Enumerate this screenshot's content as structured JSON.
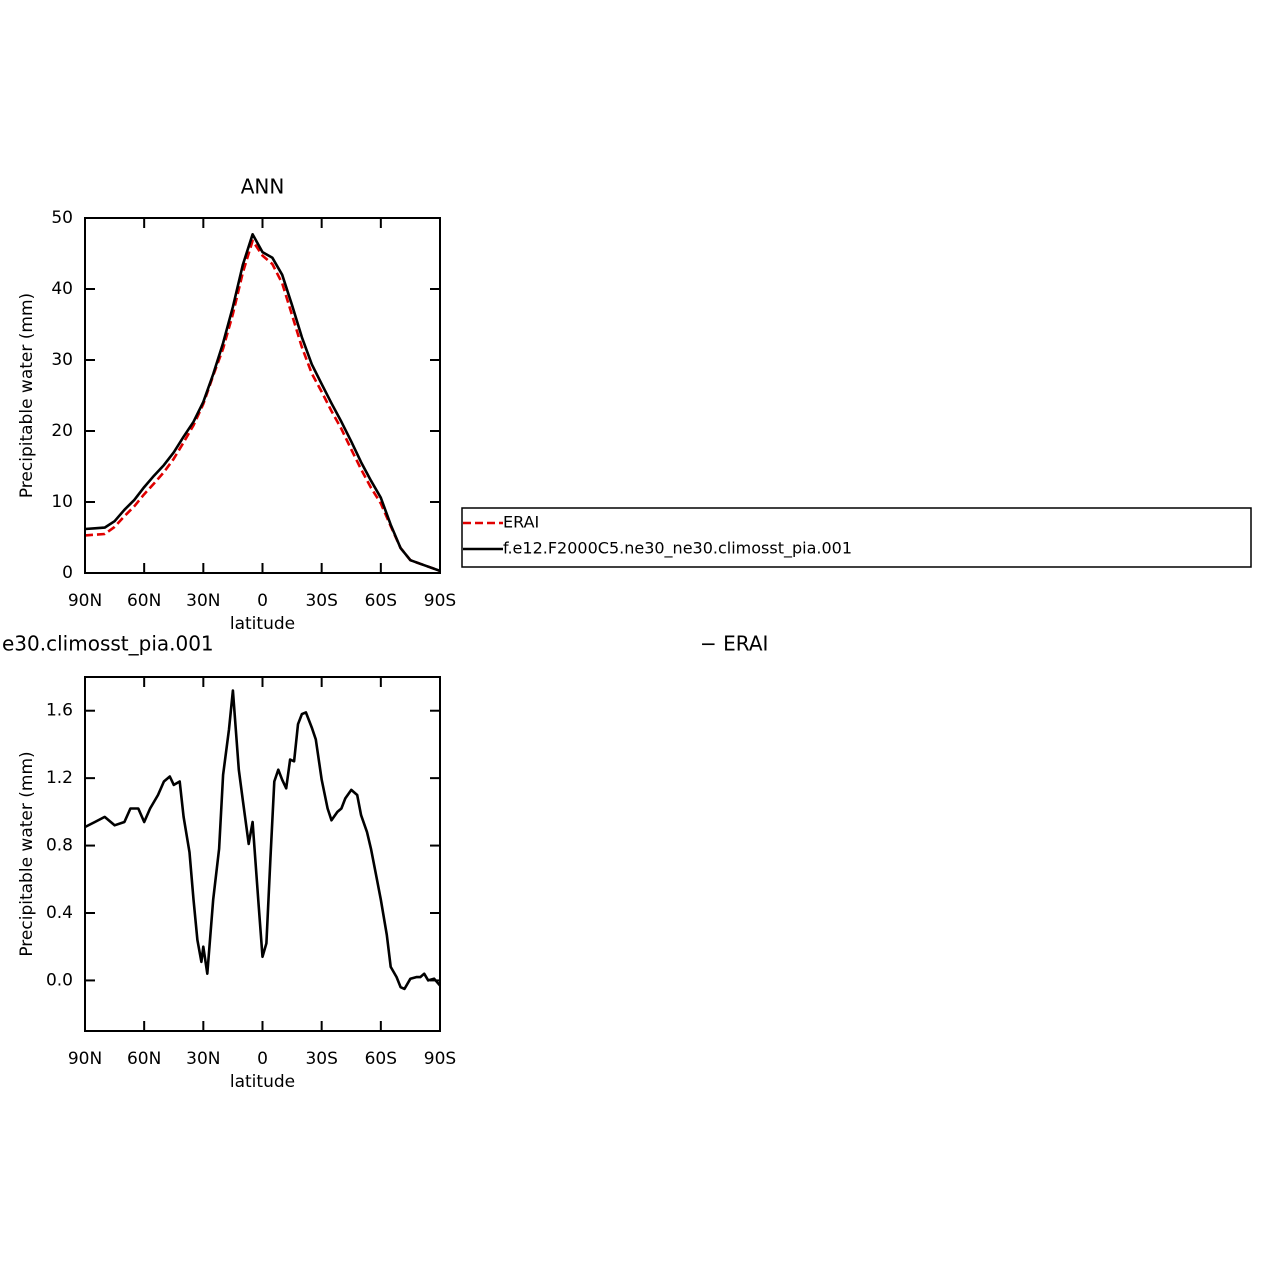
{
  "chart_data": [
    {
      "type": "line",
      "title": "ANN",
      "xlabel": "latitude",
      "ylabel": "Precipitable water (mm)",
      "x": [
        90,
        85,
        80,
        75,
        70,
        65,
        60,
        55,
        50,
        45,
        40,
        35,
        30,
        25,
        20,
        15,
        10,
        5,
        0,
        -5,
        -10,
        -15,
        -20,
        -25,
        -30,
        -35,
        -40,
        -45,
        -50,
        -55,
        -60,
        -65,
        -70,
        -75,
        -80,
        -85,
        -90
      ],
      "series": [
        {
          "name": "ERAI",
          "color": "#e00000",
          "dashed": true,
          "values": [
            5.3,
            5.4,
            5.5,
            6.5,
            8.0,
            9.4,
            11.1,
            12.6,
            14.2,
            16.1,
            18.4,
            20.8,
            23.8,
            27.8,
            31.6,
            36.5,
            42.3,
            46.8,
            44.7,
            43.5,
            40.8,
            36.3,
            31.8,
            28.1,
            25.5,
            22.8,
            20.3,
            17.4,
            14.6,
            12.0,
            9.8,
            6.6,
            3.5,
            1.8,
            1.3,
            0.8,
            0.3
          ]
        },
        {
          "name": "f.e12.F2000C5.ne30_ne30.climosst_pia.001",
          "color": "#000000",
          "dashed": false,
          "values": [
            6.2,
            6.3,
            6.4,
            7.3,
            8.9,
            10.3,
            12.1,
            13.7,
            15.2,
            17.0,
            19.2,
            21.3,
            24.1,
            28.0,
            32.4,
            37.5,
            43.4,
            47.7,
            45.2,
            44.4,
            42.0,
            37.7,
            33.2,
            29.4,
            26.6,
            23.9,
            21.3,
            18.5,
            15.6,
            13.0,
            10.6,
            6.8,
            3.5,
            1.8,
            1.3,
            0.8,
            0.3
          ]
        }
      ],
      "xlim": [
        90,
        -90
      ],
      "xticks": [
        {
          "value": 90,
          "label": "90N"
        },
        {
          "value": 60,
          "label": "60N"
        },
        {
          "value": 30,
          "label": "30N"
        },
        0,
        {
          "value": -30,
          "label": "30S"
        },
        {
          "value": -60,
          "label": "60S"
        },
        {
          "value": -90,
          "label": "90S"
        }
      ],
      "ylim": [
        0,
        50
      ],
      "yticks": [
        0,
        10,
        20,
        30,
        40,
        50
      ],
      "legend": "right"
    },
    {
      "type": "line",
      "title_left": "e30.climosst_pia.001",
      "title_right": "− ERAI",
      "xlabel": "latitude",
      "ylabel": "Precipitable water (mm)",
      "x": [
        90,
        85,
        80,
        75,
        70,
        67,
        63,
        60,
        57,
        53,
        50,
        47,
        45,
        42,
        40,
        37,
        35,
        33,
        31,
        30,
        28,
        25,
        22,
        20,
        17,
        15,
        12,
        10,
        7,
        5,
        2,
        0,
        -2,
        -4,
        -6,
        -8,
        -10,
        -12,
        -14,
        -16,
        -18,
        -20,
        -22,
        -25,
        -27,
        -30,
        -33,
        -35,
        -38,
        -40,
        -42,
        -45,
        -48,
        -50,
        -53,
        -55,
        -58,
        -60,
        -63,
        -65,
        -68,
        -70,
        -72,
        -75,
        -78,
        -80,
        -82,
        -84,
        -87,
        -90
      ],
      "values": [
        0.91,
        0.94,
        0.97,
        0.92,
        0.94,
        1.02,
        1.02,
        0.94,
        1.02,
        1.1,
        1.18,
        1.21,
        1.16,
        1.18,
        0.97,
        0.76,
        0.48,
        0.24,
        0.11,
        0.2,
        0.04,
        0.48,
        0.78,
        1.22,
        1.49,
        1.72,
        1.25,
        1.07,
        0.81,
        0.94,
        0.45,
        0.14,
        0.22,
        0.72,
        1.18,
        1.25,
        1.19,
        1.14,
        1.31,
        1.3,
        1.52,
        1.58,
        1.59,
        1.5,
        1.43,
        1.19,
        1.02,
        0.95,
        1.0,
        1.02,
        1.08,
        1.13,
        1.1,
        0.98,
        0.88,
        0.78,
        0.6,
        0.48,
        0.27,
        0.08,
        0.02,
        -0.04,
        -0.05,
        0.01,
        0.02,
        0.02,
        0.04,
        0.0,
        0.01,
        -0.03
      ],
      "color": "#000000",
      "xlim": [
        90,
        -90
      ],
      "xticks": [
        {
          "value": 90,
          "label": "90N"
        },
        {
          "value": 60,
          "label": "60N"
        },
        {
          "value": 30,
          "label": "30N"
        },
        0,
        {
          "value": -30,
          "label": "30S"
        },
        {
          "value": -60,
          "label": "60S"
        },
        {
          "value": -90,
          "label": "90S"
        }
      ],
      "ylim": [
        -0.3,
        1.8
      ],
      "yticks": [
        {
          "value": 0,
          "label": "0.0"
        },
        0.4,
        0.8,
        1.2,
        1.6
      ]
    }
  ]
}
